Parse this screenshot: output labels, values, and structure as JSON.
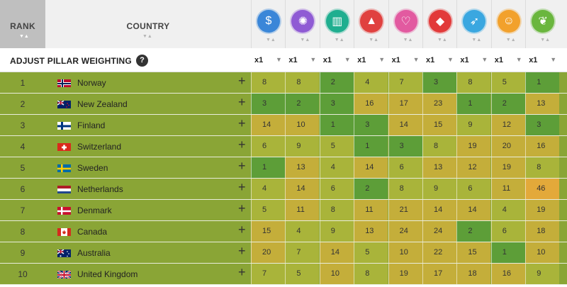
{
  "header": {
    "rank_label": "RANK",
    "country_label": "COUNTRY",
    "sort_glyph": "▼▲"
  },
  "pillars": [
    {
      "icon": "money-bag-icon",
      "glyph": "$",
      "color": "#3a86d8"
    },
    {
      "icon": "lightbulb-icon",
      "glyph": "✺",
      "color": "#8f5bd4"
    },
    {
      "icon": "government-building-icon",
      "glyph": "▥",
      "color": "#1fae8f"
    },
    {
      "icon": "graduation-cap-icon",
      "glyph": "▲",
      "color": "#e0413f"
    },
    {
      "icon": "heart-pulse-icon",
      "glyph": "♡",
      "color": "#e25aa0"
    },
    {
      "icon": "shield-icon",
      "glyph": "◆",
      "color": "#e23a3a"
    },
    {
      "icon": "runner-icon",
      "glyph": "➶",
      "color": "#3aa7e0"
    },
    {
      "icon": "people-group-icon",
      "glyph": "☺",
      "color": "#f2a12c"
    },
    {
      "icon": "leaf-icon",
      "glyph": "❦",
      "color": "#6ab63e"
    }
  ],
  "weighting": {
    "label": "ADJUST PILLAR WEIGHTING",
    "help_glyph": "?",
    "values": [
      "x1",
      "x1",
      "x1",
      "x1",
      "x1",
      "x1",
      "x1",
      "x1",
      "x1"
    ],
    "caret": "▼"
  },
  "rows": [
    {
      "rank": "1",
      "country": "Norway",
      "flag": "norway",
      "values": [
        "8",
        "8",
        "2",
        "4",
        "7",
        "3",
        "8",
        "5",
        "1"
      ]
    },
    {
      "rank": "2",
      "country": "New Zealand",
      "flag": "new-zealand",
      "values": [
        "3",
        "2",
        "3",
        "16",
        "17",
        "23",
        "1",
        "2",
        "13"
      ]
    },
    {
      "rank": "3",
      "country": "Finland",
      "flag": "finland",
      "values": [
        "14",
        "10",
        "1",
        "3",
        "14",
        "15",
        "9",
        "12",
        "3"
      ]
    },
    {
      "rank": "4",
      "country": "Switzerland",
      "flag": "switzerland",
      "values": [
        "6",
        "9",
        "5",
        "1",
        "3",
        "8",
        "19",
        "20",
        "16"
      ]
    },
    {
      "rank": "5",
      "country": "Sweden",
      "flag": "sweden",
      "values": [
        "1",
        "13",
        "4",
        "14",
        "6",
        "13",
        "12",
        "19",
        "8"
      ]
    },
    {
      "rank": "6",
      "country": "Netherlands",
      "flag": "netherlands",
      "values": [
        "4",
        "14",
        "6",
        "2",
        "8",
        "9",
        "6",
        "11",
        "46"
      ]
    },
    {
      "rank": "7",
      "country": "Denmark",
      "flag": "denmark",
      "values": [
        "5",
        "11",
        "8",
        "11",
        "21",
        "14",
        "14",
        "4",
        "19"
      ]
    },
    {
      "rank": "8",
      "country": "Canada",
      "flag": "canada",
      "values": [
        "15",
        "4",
        "9",
        "13",
        "24",
        "24",
        "2",
        "6",
        "18"
      ]
    },
    {
      "rank": "9",
      "country": "Australia",
      "flag": "australia",
      "values": [
        "20",
        "7",
        "14",
        "5",
        "10",
        "22",
        "15",
        "1",
        "10"
      ]
    },
    {
      "rank": "10",
      "country": "United Kingdom",
      "flag": "united-kingdom",
      "values": [
        "7",
        "5",
        "10",
        "8",
        "19",
        "17",
        "18",
        "16",
        "9"
      ]
    }
  ],
  "row_plus_glyph": "+",
  "colors": {
    "row_base": "#8aa536",
    "cell_best": "#5d9e38",
    "cell_mid": "#a9b43a",
    "cell_worse": "#c4ae3a",
    "cell_worst": "#e3a93a"
  }
}
